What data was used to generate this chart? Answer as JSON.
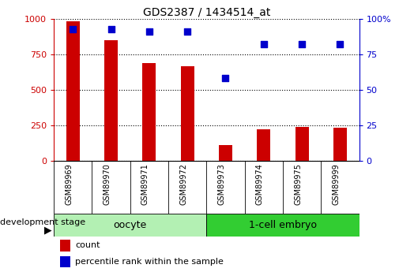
{
  "title": "GDS2387 / 1434514_at",
  "samples": [
    "GSM89969",
    "GSM89970",
    "GSM89971",
    "GSM89972",
    "GSM89973",
    "GSM89974",
    "GSM89975",
    "GSM89999"
  ],
  "counts": [
    985,
    850,
    690,
    665,
    110,
    220,
    235,
    230
  ],
  "percentile_ranks": [
    93,
    93,
    91,
    91,
    58,
    82,
    82,
    82
  ],
  "groups": [
    {
      "label": "oocyte",
      "indices": [
        0,
        1,
        2,
        3
      ],
      "color": "#90ee90"
    },
    {
      "label": "1-cell embryo",
      "indices": [
        4,
        5,
        6,
        7
      ],
      "color": "#32cd32"
    }
  ],
  "bar_color": "#cc0000",
  "dot_color": "#0000cc",
  "left_yticks": [
    0,
    250,
    500,
    750,
    1000
  ],
  "right_yticks": [
    0,
    25,
    50,
    75,
    100
  ],
  "ylim_left": [
    0,
    1000
  ],
  "ylim_right": [
    0,
    100
  ],
  "grid_color": "#000000",
  "axis_left_color": "#cc0000",
  "axis_right_color": "#0000cc",
  "background_color": "#ffffff",
  "plot_bg_color": "#ffffff",
  "dev_stage_label": "development stage",
  "legend_items": [
    {
      "label": "count",
      "color": "#cc0000"
    },
    {
      "label": "percentile rank within the sample",
      "color": "#0000cc"
    }
  ],
  "bar_width": 0.35,
  "dot_size": 40,
  "xlabel_area_bg": "#d3d3d3",
  "group_area_bg_light": "#b3f0b3",
  "group_area_bg_dark": "#32cd32"
}
